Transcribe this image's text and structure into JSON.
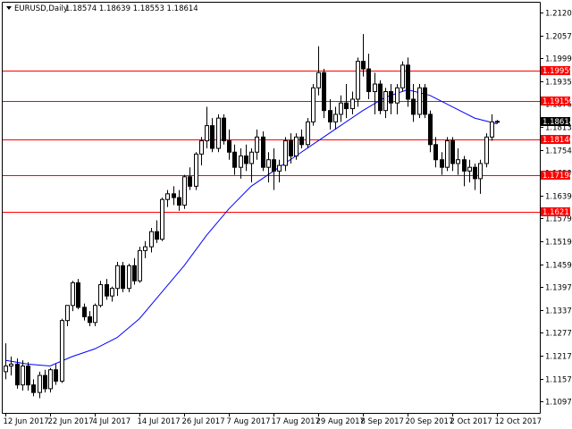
{
  "header": {
    "symbol": "EURUSD,Daily",
    "ohlc": "1.18574 1.18639 1.18553 1.18614"
  },
  "colors": {
    "background": "#ffffff",
    "candle_outline": "#000000",
    "bull_body": "#ffffff",
    "bear_body": "#000000",
    "moving_average": "#0000ff",
    "level_line": "#ff0000",
    "level_label_bg": "#ff0000",
    "price_label_bg": "#000000"
  },
  "chart_data": {
    "type": "candlestick",
    "y_axis_ticks": [
      "1.21205",
      "1.20575",
      "1.19990",
      "1.19350",
      "1.18760",
      "1.18130",
      "1.17540",
      "1.16990",
      "1.16390",
      "1.15790",
      "1.15190",
      "1.14590",
      "1.13975",
      "1.13375",
      "1.12775",
      "1.12175",
      "1.11575",
      "1.10975"
    ],
    "ylim": [
      1.1091,
      1.2175
    ],
    "x_axis_ticks": [
      {
        "label": "12 Jun 2017",
        "index": 0
      },
      {
        "label": "22 Jun 2017",
        "index": 8
      },
      {
        "label": "4 Jul 2017",
        "index": 16
      },
      {
        "label": "14 Jul 2017",
        "index": 24
      },
      {
        "label": "26 Jul 2017",
        "index": 32
      },
      {
        "label": "7 Aug 2017",
        "index": 40
      },
      {
        "label": "17 Aug 2017",
        "index": 48
      },
      {
        "label": "29 Aug 2017",
        "index": 56
      },
      {
        "label": "8 Sep 2017",
        "index": 64
      },
      {
        "label": "20 Sep 2017",
        "index": 72
      },
      {
        "label": "2 Oct 2017",
        "index": 80
      },
      {
        "label": "12 Oct 2017",
        "index": 88
      }
    ],
    "levels": [
      {
        "price": 1.19959,
        "label": "1.19959"
      },
      {
        "price": 1.1915,
        "label": "1.19150"
      },
      {
        "price": 1.18146,
        "label": "1.18146"
      },
      {
        "price": 1.17198,
        "label": "1.17198"
      },
      {
        "price": 1.16217,
        "label": "1.16217"
      }
    ],
    "current_price": {
      "price": 1.18614,
      "label": "1.18614"
    },
    "candles": [
      [
        1.12,
        1.1275,
        1.118,
        1.1215
      ],
      [
        1.1215,
        1.124,
        1.119,
        1.122
      ],
      [
        1.122,
        1.1235,
        1.1155,
        1.1165
      ],
      [
        1.1165,
        1.123,
        1.115,
        1.1215
      ],
      [
        1.1215,
        1.1225,
        1.115,
        1.1165
      ],
      [
        1.1165,
        1.118,
        1.1135,
        1.1145
      ],
      [
        1.1145,
        1.12,
        1.113,
        1.119
      ],
      [
        1.119,
        1.1205,
        1.1145,
        1.1155
      ],
      [
        1.1155,
        1.121,
        1.1145,
        1.1205
      ],
      [
        1.1205,
        1.122,
        1.1165,
        1.1175
      ],
      [
        1.1175,
        1.134,
        1.117,
        1.1335
      ],
      [
        1.1335,
        1.1375,
        1.132,
        1.1375
      ],
      [
        1.1375,
        1.144,
        1.136,
        1.1435
      ],
      [
        1.1435,
        1.1445,
        1.1365,
        1.137
      ],
      [
        1.137,
        1.138,
        1.1335,
        1.1345
      ],
      [
        1.1345,
        1.136,
        1.132,
        1.133
      ],
      [
        1.133,
        1.138,
        1.132,
        1.1375
      ],
      [
        1.1375,
        1.144,
        1.137,
        1.143
      ],
      [
        1.143,
        1.1445,
        1.139,
        1.14
      ],
      [
        1.14,
        1.1425,
        1.1385,
        1.142
      ],
      [
        1.142,
        1.149,
        1.14,
        1.148
      ],
      [
        1.148,
        1.149,
        1.141,
        1.142
      ],
      [
        1.142,
        1.1485,
        1.141,
        1.148
      ],
      [
        1.148,
        1.15,
        1.143,
        1.144
      ],
      [
        1.144,
        1.153,
        1.1435,
        1.152
      ],
      [
        1.152,
        1.1545,
        1.15,
        1.153
      ],
      [
        1.153,
        1.158,
        1.1515,
        1.157
      ],
      [
        1.157,
        1.16,
        1.154,
        1.155
      ],
      [
        1.155,
        1.166,
        1.1545,
        1.1655
      ],
      [
        1.1655,
        1.168,
        1.1635,
        1.167
      ],
      [
        1.167,
        1.169,
        1.164,
        1.166
      ],
      [
        1.166,
        1.168,
        1.1625,
        1.164
      ],
      [
        1.164,
        1.172,
        1.163,
        1.1715
      ],
      [
        1.1715,
        1.174,
        1.168,
        1.169
      ],
      [
        1.169,
        1.178,
        1.168,
        1.1775
      ],
      [
        1.1775,
        1.182,
        1.1745,
        1.181
      ],
      [
        1.181,
        1.19,
        1.179,
        1.185
      ],
      [
        1.185,
        1.187,
        1.178,
        1.179
      ],
      [
        1.179,
        1.188,
        1.178,
        1.187
      ],
      [
        1.187,
        1.188,
        1.18,
        1.181
      ],
      [
        1.181,
        1.184,
        1.176,
        1.178
      ],
      [
        1.178,
        1.18,
        1.172,
        1.174
      ],
      [
        1.174,
        1.179,
        1.171,
        1.177
      ],
      [
        1.177,
        1.18,
        1.173,
        1.175
      ],
      [
        1.175,
        1.179,
        1.17,
        1.178
      ],
      [
        1.178,
        1.184,
        1.176,
        1.182
      ],
      [
        1.182,
        1.1835,
        1.173,
        1.174
      ],
      [
        1.174,
        1.178,
        1.17,
        1.176
      ],
      [
        1.176,
        1.179,
        1.168,
        1.173
      ],
      [
        1.173,
        1.176,
        1.17,
        1.1745
      ],
      [
        1.1745,
        1.182,
        1.173,
        1.181
      ],
      [
        1.181,
        1.183,
        1.175,
        1.177
      ],
      [
        1.177,
        1.183,
        1.176,
        1.182
      ],
      [
        1.182,
        1.184,
        1.179,
        1.18
      ],
      [
        1.18,
        1.187,
        1.179,
        1.186
      ],
      [
        1.186,
        1.196,
        1.185,
        1.195
      ],
      [
        1.195,
        1.206,
        1.193,
        1.199
      ],
      [
        1.199,
        1.2,
        1.187,
        1.189
      ],
      [
        1.189,
        1.192,
        1.184,
        1.186
      ],
      [
        1.186,
        1.19,
        1.184,
        1.188
      ],
      [
        1.188,
        1.193,
        1.186,
        1.191
      ],
      [
        1.191,
        1.196,
        1.187,
        1.1895
      ],
      [
        1.1895,
        1.194,
        1.188,
        1.192
      ],
      [
        1.192,
        1.203,
        1.19,
        1.202
      ],
      [
        1.202,
        1.2092,
        1.198,
        1.2
      ],
      [
        1.2,
        1.204,
        1.192,
        1.194
      ],
      [
        1.194,
        1.199,
        1.188,
        1.196
      ],
      [
        1.196,
        1.197,
        1.188,
        1.189
      ],
      [
        1.189,
        1.195,
        1.187,
        1.194
      ],
      [
        1.194,
        1.196,
        1.188,
        1.191
      ],
      [
        1.191,
        1.196,
        1.188,
        1.195
      ],
      [
        1.195,
        1.202,
        1.194,
        1.201
      ],
      [
        1.201,
        1.203,
        1.19,
        1.192
      ],
      [
        1.192,
        1.196,
        1.186,
        1.188
      ],
      [
        1.188,
        1.196,
        1.187,
        1.195
      ],
      [
        1.195,
        1.196,
        1.187,
        1.188
      ],
      [
        1.188,
        1.189,
        1.178,
        1.18
      ],
      [
        1.18,
        1.182,
        1.174,
        1.176
      ],
      [
        1.176,
        1.178,
        1.172,
        1.174
      ],
      [
        1.174,
        1.182,
        1.173,
        1.181
      ],
      [
        1.181,
        1.182,
        1.173,
        1.175
      ],
      [
        1.175,
        1.179,
        1.172,
        1.176
      ],
      [
        1.176,
        1.177,
        1.169,
        1.173
      ],
      [
        1.173,
        1.176,
        1.17,
        1.174
      ],
      [
        1.174,
        1.175,
        1.168,
        1.171
      ],
      [
        1.171,
        1.176,
        1.167,
        1.175
      ],
      [
        1.175,
        1.183,
        1.174,
        1.182
      ],
      [
        1.182,
        1.188,
        1.181,
        1.186
      ],
      [
        1.186,
        1.1865,
        1.1855,
        1.18614
      ]
    ],
    "moving_average": [
      [
        0,
        1.123
      ],
      [
        4,
        1.122
      ],
      [
        8,
        1.1215
      ],
      [
        12,
        1.124
      ],
      [
        16,
        1.126
      ],
      [
        20,
        1.129
      ],
      [
        24,
        1.134
      ],
      [
        28,
        1.141
      ],
      [
        32,
        1.148
      ],
      [
        36,
        1.156
      ],
      [
        40,
        1.163
      ],
      [
        44,
        1.169
      ],
      [
        48,
        1.173
      ],
      [
        52,
        1.177
      ],
      [
        56,
        1.181
      ],
      [
        60,
        1.185
      ],
      [
        64,
        1.189
      ],
      [
        68,
        1.1925
      ],
      [
        72,
        1.1945
      ],
      [
        76,
        1.193
      ],
      [
        80,
        1.19
      ],
      [
        84,
        1.187
      ],
      [
        88,
        1.1855
      ]
    ]
  }
}
